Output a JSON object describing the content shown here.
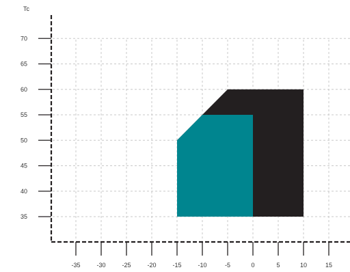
{
  "chart_data": {
    "type": "area",
    "title": "",
    "xlabel": "",
    "ylabel": "Tc",
    "xlim": [
      -40,
      19
    ],
    "ylim": [
      30,
      74
    ],
    "grid": true,
    "x_ticks": [
      -35,
      -30,
      -25,
      -20,
      -15,
      -10,
      -5,
      0,
      5,
      10,
      15
    ],
    "x_tick_labels": [
      "-35",
      "-30",
      "-25",
      "-20",
      "-15",
      "-10",
      "-5",
      "0",
      "5",
      "10",
      "15"
    ],
    "y_ticks": [
      35,
      40,
      45,
      50,
      55,
      60,
      65,
      70
    ],
    "y_tick_labels": [
      "35",
      "40",
      "45",
      "50",
      "55",
      "60",
      "65",
      "70"
    ],
    "regions": [
      {
        "color": "#231f20",
        "points": [
          [
            -15,
            35
          ],
          [
            -15,
            50
          ],
          [
            -5,
            60
          ],
          [
            10,
            60
          ],
          [
            10,
            35
          ]
        ]
      },
      {
        "color": "#00858f",
        "points": [
          [
            -15,
            35
          ],
          [
            -15,
            50
          ],
          [
            -10,
            55
          ],
          [
            0,
            55
          ],
          [
            0,
            35
          ]
        ]
      }
    ],
    "axis_color": "#231f20",
    "grid_color": "#c8c8c8"
  }
}
